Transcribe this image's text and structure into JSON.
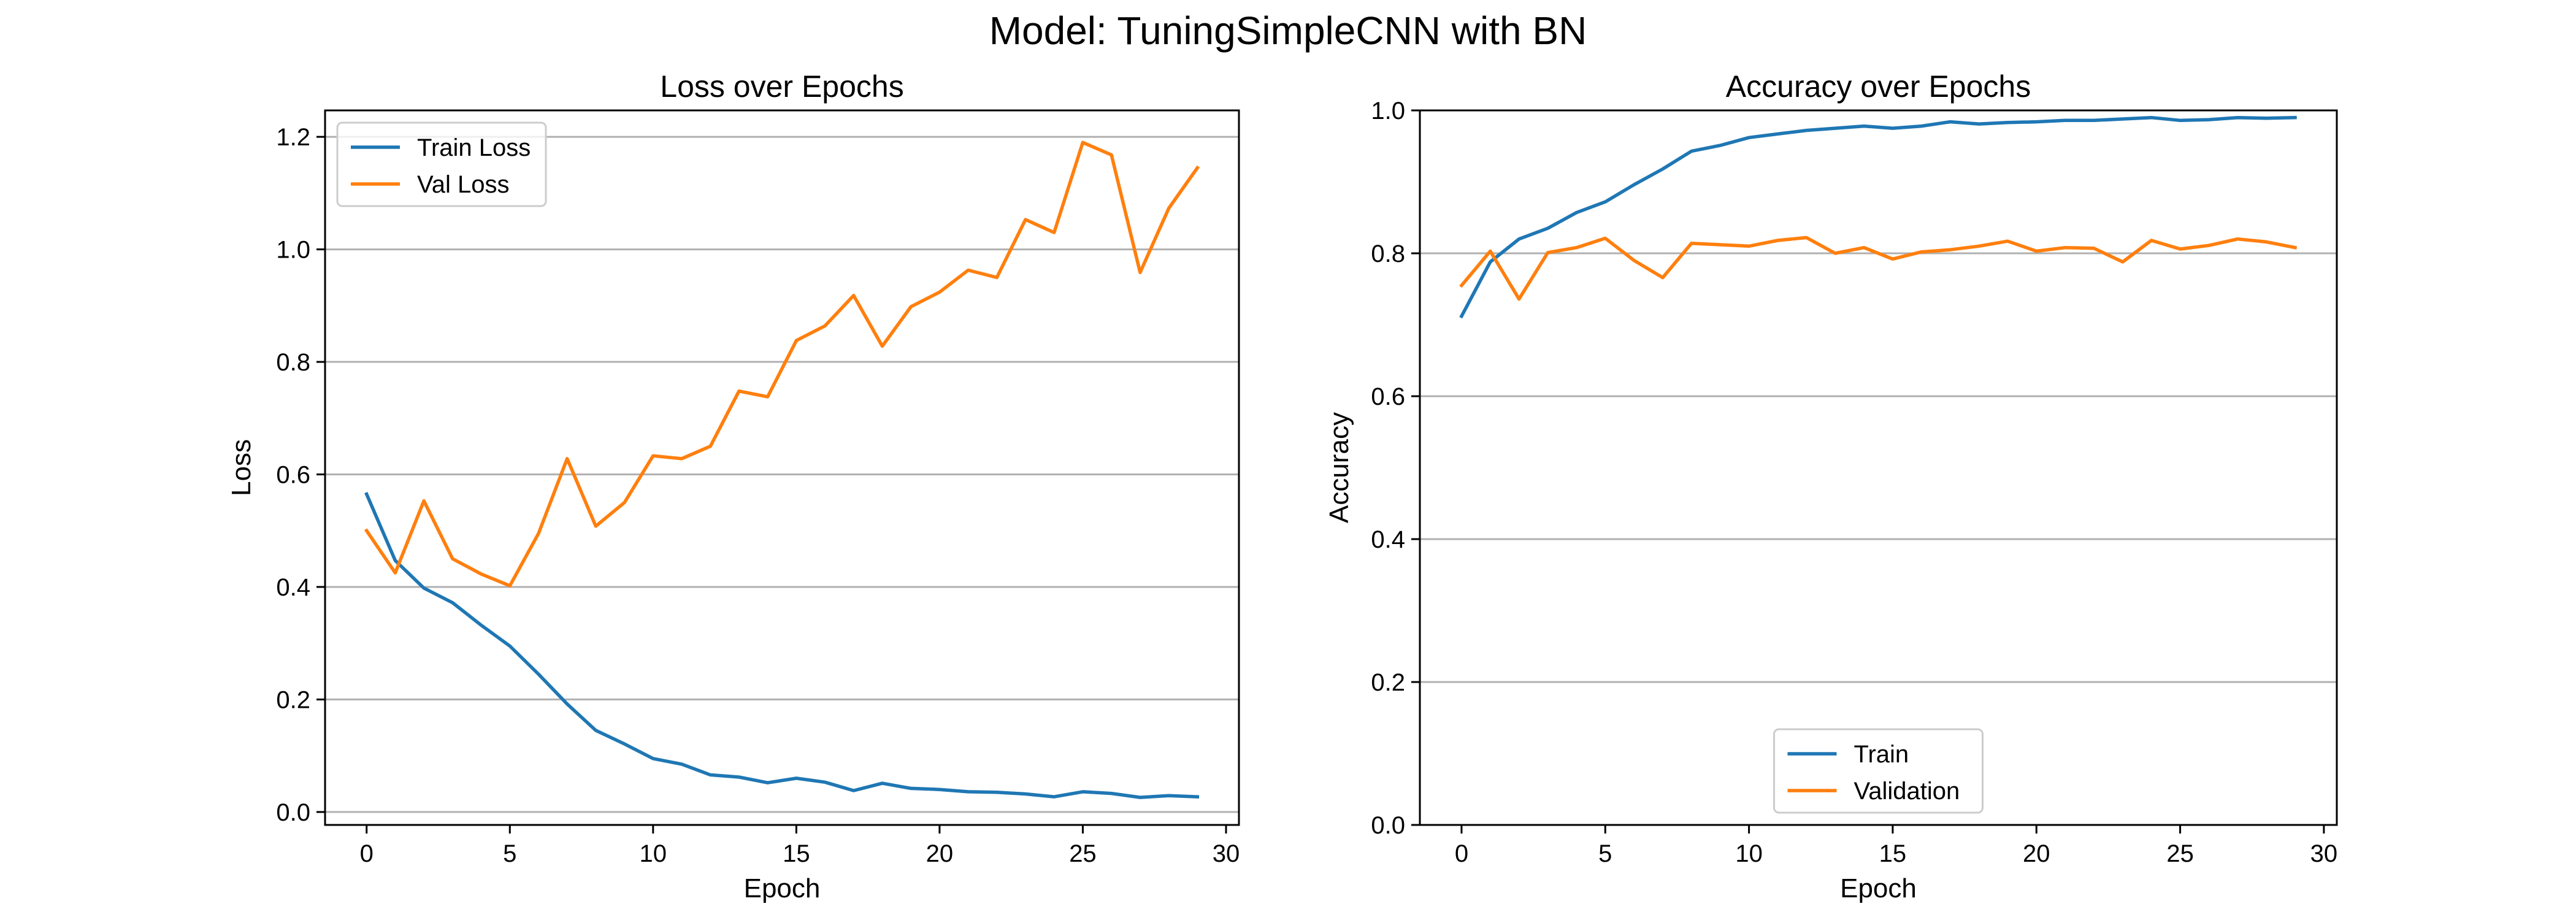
{
  "figure": {
    "suptitle": "Model: TuningSimpleCNN with BN"
  },
  "colors": {
    "blue": "#1f77b4",
    "orange": "#ff7f0e"
  },
  "chart_data": [
    {
      "type": "line",
      "title": "Loss over Epochs",
      "xlabel": "Epoch",
      "ylabel": "Loss",
      "xlim": [
        -1.45,
        30.45
      ],
      "ylim": [
        -0.023,
        1.247
      ],
      "xticks": [
        0,
        5,
        10,
        15,
        20,
        25,
        30
      ],
      "yticks": [
        0.0,
        0.2,
        0.4,
        0.6,
        0.8,
        1.0,
        1.2
      ],
      "ytick_labels": [
        "0.0",
        "0.2",
        "0.4",
        "0.6",
        "0.8",
        "1.0",
        "1.2"
      ],
      "grid": "y",
      "legend_position": "upper left",
      "x": [
        0,
        1,
        2,
        3,
        4,
        5,
        6,
        7,
        8,
        9,
        10,
        11,
        12,
        13,
        14,
        15,
        16,
        17,
        18,
        19,
        20,
        21,
        22,
        23,
        24,
        25,
        26,
        27,
        28,
        29
      ],
      "series": [
        {
          "name": "Train Loss",
          "color": "#1f77b4",
          "values": [
            0.565,
            0.447,
            0.398,
            0.372,
            0.332,
            0.295,
            0.245,
            0.192,
            0.145,
            0.121,
            0.095,
            0.085,
            0.066,
            0.062,
            0.052,
            0.06,
            0.053,
            0.038,
            0.051,
            0.042,
            0.04,
            0.036,
            0.035,
            0.032,
            0.027,
            0.036,
            0.033,
            0.026,
            0.029,
            0.027
          ]
        },
        {
          "name": "Val Loss",
          "color": "#ff7f0e",
          "values": [
            0.5,
            0.425,
            0.553,
            0.45,
            0.423,
            0.402,
            0.495,
            0.628,
            0.508,
            0.55,
            0.633,
            0.628,
            0.65,
            0.748,
            0.738,
            0.838,
            0.864,
            0.918,
            0.828,
            0.898,
            0.924,
            0.963,
            0.95,
            1.053,
            1.03,
            1.19,
            1.168,
            0.959,
            1.073,
            1.145
          ]
        }
      ]
    },
    {
      "type": "line",
      "title": "Accuracy over Epochs",
      "xlabel": "Epoch",
      "ylabel": "Accuracy",
      "xlim": [
        -1.45,
        30.45
      ],
      "ylim": [
        0.0,
        1.0
      ],
      "xticks": [
        0,
        5,
        10,
        15,
        20,
        25,
        30
      ],
      "yticks": [
        0.0,
        0.2,
        0.4,
        0.6,
        0.8,
        1.0
      ],
      "ytick_labels": [
        "0.0",
        "0.2",
        "0.4",
        "0.6",
        "0.8",
        "1.0"
      ],
      "grid": "y",
      "legend_position": "lower center",
      "x": [
        0,
        1,
        2,
        3,
        4,
        5,
        6,
        7,
        8,
        9,
        10,
        11,
        12,
        13,
        14,
        15,
        16,
        17,
        18,
        19,
        20,
        21,
        22,
        23,
        24,
        25,
        26,
        27,
        28,
        29
      ],
      "series": [
        {
          "name": "Train",
          "color": "#1f77b4",
          "values": [
            0.712,
            0.788,
            0.82,
            0.835,
            0.857,
            0.872,
            0.896,
            0.918,
            0.943,
            0.951,
            0.962,
            0.967,
            0.972,
            0.975,
            0.978,
            0.975,
            0.978,
            0.984,
            0.981,
            0.983,
            0.984,
            0.986,
            0.986,
            0.988,
            0.99,
            0.986,
            0.987,
            0.99,
            0.989,
            0.99
          ]
        },
        {
          "name": "Validation",
          "color": "#ff7f0e",
          "values": [
            0.755,
            0.803,
            0.736,
            0.801,
            0.808,
            0.821,
            0.79,
            0.766,
            0.814,
            0.812,
            0.81,
            0.818,
            0.822,
            0.8,
            0.808,
            0.792,
            0.802,
            0.805,
            0.81,
            0.817,
            0.803,
            0.808,
            0.807,
            0.788,
            0.818,
            0.806,
            0.811,
            0.82,
            0.816,
            0.808
          ]
        }
      ]
    }
  ]
}
